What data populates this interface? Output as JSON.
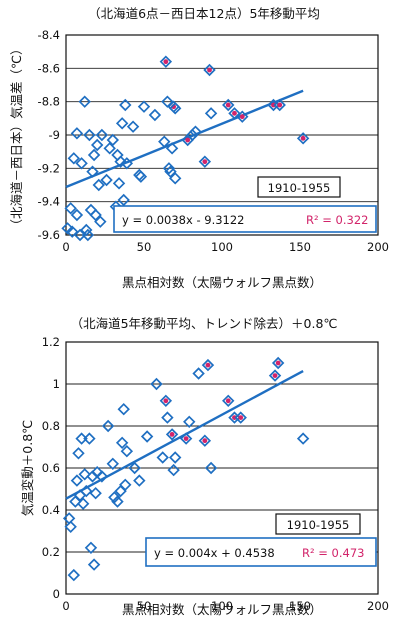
{
  "colors": {
    "marker": "#1f6fc2",
    "trend": "#1f6fc2",
    "highlight": "#d2246a",
    "r2": "#d2246a"
  },
  "chart_data": [
    {
      "type": "scatter",
      "title": "（北海道6点－西日本12点）5年移動平均",
      "xlabel": "黒点相対数（太陽ウォルフ黒点数）",
      "ylabel": "（北海道－西日本）気温差（℃）",
      "xlim": [
        0,
        200
      ],
      "ylim": [
        -9.6,
        -8.4
      ],
      "xticks": [
        "0",
        "50",
        "100",
        "150",
        "200"
      ],
      "yticks": [
        "-9.6",
        "-9.4",
        "-9.2",
        "-9",
        "-8.8",
        "-8.6",
        "-8.4"
      ],
      "grid": "y-major",
      "period": "1910-1955",
      "equation": "y = 0.0038x - 9.3122",
      "r2": "R² = 0.322",
      "trendline": {
        "slope": 0.0038,
        "intercept": -9.3122,
        "x_range": [
          0,
          152
        ]
      },
      "points": [
        {
          "x": 1,
          "y": -9.56
        },
        {
          "x": 3,
          "y": -9.44
        },
        {
          "x": 4,
          "y": -9.58
        },
        {
          "x": 5,
          "y": -9.14
        },
        {
          "x": 7,
          "y": -8.99
        },
        {
          "x": 7,
          "y": -9.48
        },
        {
          "x": 9,
          "y": -9.6
        },
        {
          "x": 10,
          "y": -9.17
        },
        {
          "x": 12,
          "y": -8.8
        },
        {
          "x": 13,
          "y": -9.57
        },
        {
          "x": 14,
          "y": -9.6
        },
        {
          "x": 15,
          "y": -9.0
        },
        {
          "x": 16,
          "y": -9.45
        },
        {
          "x": 17,
          "y": -9.22
        },
        {
          "x": 18,
          "y": -9.12
        },
        {
          "x": 19,
          "y": -9.48
        },
        {
          "x": 20,
          "y": -9.06
        },
        {
          "x": 21,
          "y": -9.3
        },
        {
          "x": 22,
          "y": -9.52
        },
        {
          "x": 23,
          "y": -9.0
        },
        {
          "x": 26,
          "y": -9.27
        },
        {
          "x": 28,
          "y": -9.08
        },
        {
          "x": 30,
          "y": -9.03
        },
        {
          "x": 32,
          "y": -9.43
        },
        {
          "x": 33,
          "y": -9.12
        },
        {
          "x": 34,
          "y": -9.29
        },
        {
          "x": 35,
          "y": -9.16
        },
        {
          "x": 36,
          "y": -8.93
        },
        {
          "x": 37,
          "y": -9.39
        },
        {
          "x": 38,
          "y": -8.82
        },
        {
          "x": 39,
          "y": -9.17
        },
        {
          "x": 43,
          "y": -8.95
        },
        {
          "x": 47,
          "y": -9.24
        },
        {
          "x": 48,
          "y": -9.25
        },
        {
          "x": 50,
          "y": -8.83
        },
        {
          "x": 57,
          "y": -8.88
        },
        {
          "x": 63,
          "y": -9.04
        },
        {
          "x": 64,
          "y": -8.56,
          "highlight": true
        },
        {
          "x": 65,
          "y": -8.8
        },
        {
          "x": 66,
          "y": -9.2
        },
        {
          "x": 67,
          "y": -9.22
        },
        {
          "x": 68,
          "y": -9.08
        },
        {
          "x": 69,
          "y": -8.83,
          "highlight": true
        },
        {
          "x": 70,
          "y": -9.26
        },
        {
          "x": 70,
          "y": -8.84
        },
        {
          "x": 78,
          "y": -9.03,
          "highlight": true
        },
        {
          "x": 81,
          "y": -9.0
        },
        {
          "x": 83,
          "y": -8.98
        },
        {
          "x": 89,
          "y": -9.16,
          "highlight": true
        },
        {
          "x": 92,
          "y": -8.61,
          "highlight": true
        },
        {
          "x": 93,
          "y": -8.87
        },
        {
          "x": 104,
          "y": -8.82,
          "highlight": true
        },
        {
          "x": 108,
          "y": -8.87,
          "highlight": true
        },
        {
          "x": 113,
          "y": -8.89,
          "highlight": true
        },
        {
          "x": 133,
          "y": -8.82,
          "highlight": true
        },
        {
          "x": 137,
          "y": -8.82,
          "highlight": true
        },
        {
          "x": 152,
          "y": -9.02,
          "highlight": true
        }
      ]
    },
    {
      "type": "scatter",
      "title": "（北海道5年移動平均、トレンド除去）＋0.8℃",
      "xlabel": "黒点相対数（太陽ウォルフ黒点数）",
      "ylabel": "気温変動＋0.8℃",
      "xlim": [
        0,
        200
      ],
      "ylim": [
        0,
        1.2
      ],
      "xticks": [
        "0",
        "50",
        "100",
        "150",
        "200"
      ],
      "yticks": [
        "0",
        "0.2",
        "0.4",
        "0.6",
        "0.8",
        "1",
        "1.2"
      ],
      "grid": "y-major",
      "period": "1910-1955",
      "equation": "y = 0.004x + 0.4538",
      "r2": "R² = 0.473",
      "trendline": {
        "slope": 0.004,
        "intercept": 0.4538,
        "x_range": [
          0,
          152
        ]
      },
      "points": [
        {
          "x": 2,
          "y": 0.36
        },
        {
          "x": 3,
          "y": 0.32
        },
        {
          "x": 5,
          "y": 0.09
        },
        {
          "x": 6,
          "y": 0.44
        },
        {
          "x": 7,
          "y": 0.54
        },
        {
          "x": 8,
          "y": 0.67
        },
        {
          "x": 9,
          "y": 0.47
        },
        {
          "x": 10,
          "y": 0.74
        },
        {
          "x": 11,
          "y": 0.43
        },
        {
          "x": 12,
          "y": 0.57
        },
        {
          "x": 13,
          "y": 0.49
        },
        {
          "x": 15,
          "y": 0.74
        },
        {
          "x": 16,
          "y": 0.22
        },
        {
          "x": 17,
          "y": 0.56
        },
        {
          "x": 18,
          "y": 0.14
        },
        {
          "x": 19,
          "y": 0.48
        },
        {
          "x": 20,
          "y": 0.58
        },
        {
          "x": 23,
          "y": 0.56
        },
        {
          "x": 27,
          "y": 0.8
        },
        {
          "x": 30,
          "y": 0.62
        },
        {
          "x": 31,
          "y": 0.46
        },
        {
          "x": 33,
          "y": 0.44
        },
        {
          "x": 35,
          "y": 0.49
        },
        {
          "x": 36,
          "y": 0.72
        },
        {
          "x": 37,
          "y": 0.88
        },
        {
          "x": 38,
          "y": 0.52
        },
        {
          "x": 39,
          "y": 0.68
        },
        {
          "x": 44,
          "y": 0.6
        },
        {
          "x": 47,
          "y": 0.54
        },
        {
          "x": 52,
          "y": 0.75
        },
        {
          "x": 58,
          "y": 1.0
        },
        {
          "x": 62,
          "y": 0.65
        },
        {
          "x": 64,
          "y": 0.92,
          "highlight": true
        },
        {
          "x": 65,
          "y": 0.84
        },
        {
          "x": 68,
          "y": 0.76,
          "highlight": true
        },
        {
          "x": 69,
          "y": 0.59
        },
        {
          "x": 70,
          "y": 0.65
        },
        {
          "x": 77,
          "y": 0.74,
          "highlight": true
        },
        {
          "x": 79,
          "y": 0.82
        },
        {
          "x": 85,
          "y": 1.05
        },
        {
          "x": 89,
          "y": 0.73,
          "highlight": true
        },
        {
          "x": 91,
          "y": 1.09,
          "highlight": true
        },
        {
          "x": 93,
          "y": 0.6
        },
        {
          "x": 104,
          "y": 0.92,
          "highlight": true
        },
        {
          "x": 108,
          "y": 0.84,
          "highlight": true
        },
        {
          "x": 112,
          "y": 0.84,
          "highlight": true
        },
        {
          "x": 134,
          "y": 1.04,
          "highlight": true
        },
        {
          "x": 136,
          "y": 1.1,
          "highlight": true
        },
        {
          "x": 152,
          "y": 0.74
        }
      ]
    }
  ]
}
